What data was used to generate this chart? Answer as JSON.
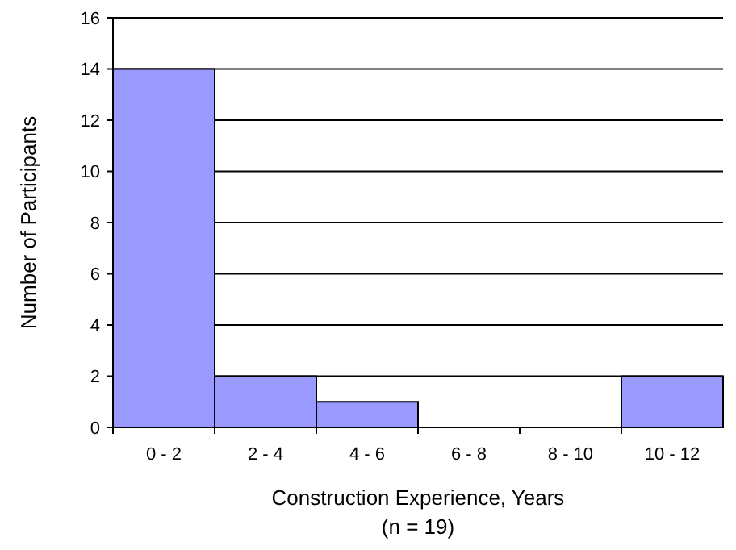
{
  "chart_data": {
    "type": "bar",
    "categories": [
      "0 - 2",
      "2 - 4",
      "4 - 6",
      "6 - 8",
      "8 - 10",
      "10 - 12"
    ],
    "values": [
      14,
      2,
      1,
      0,
      0,
      2
    ],
    "color": "#9999ff",
    "ylim": [
      0,
      16
    ],
    "yticks": [
      0,
      2,
      4,
      6,
      8,
      10,
      12,
      14,
      16
    ],
    "grid": "y",
    "xlabel": "Construction Experience, Years",
    "ylabel": "Number of Participants",
    "annotations": [
      "(n = 19)"
    ]
  }
}
